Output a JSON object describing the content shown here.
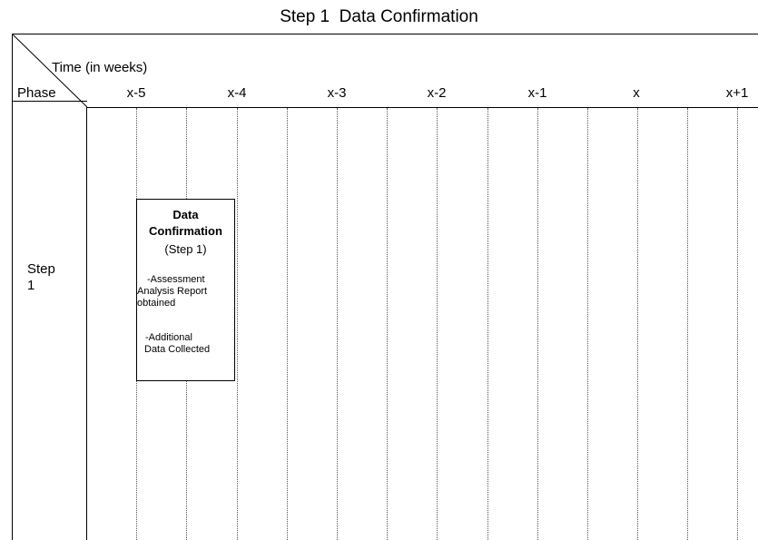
{
  "title": "Step 1  Data Confirmation",
  "header": {
    "time_label": "Time (in weeks)",
    "phase_label": "Phase"
  },
  "columns": [
    "x-5",
    "x-4",
    "x-3",
    "x-2",
    "x-1",
    "x",
    "x+1"
  ],
  "rows": [
    {
      "label_line1": "Step",
      "label_line2": "1"
    }
  ],
  "task": {
    "title_line1": "Data",
    "title_line2": "Confirmation",
    "subtitle": "(Step 1)",
    "note1_line1": "-Assessment",
    "note1_line2": "Analysis Report",
    "note1_line3": "obtained",
    "note2_line1": "-Additional",
    "note2_line2": "Data Collected"
  }
}
